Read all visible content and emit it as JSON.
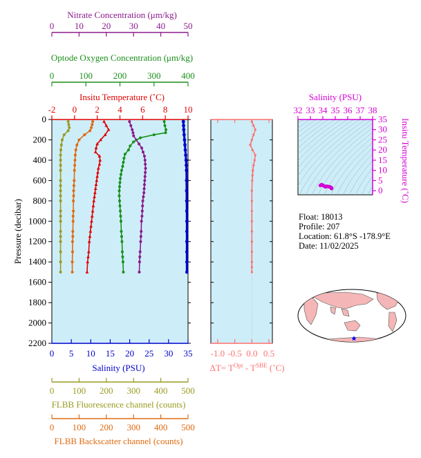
{
  "colors": {
    "nitrate": "#8b1a8b",
    "oxygen": "#1a8f1a",
    "temperature": "#e00000",
    "salinity": "#0000cc",
    "fluorescence": "#9a9a20",
    "backscatter": "#e06a10",
    "delta_t": "#ff6f6f",
    "ts_axis": "#d400d4",
    "plot_bg": "#cdeef9",
    "map_land": "#f4b6b6"
  },
  "info": {
    "float": "Float:  18013",
    "profile": "Profile:  207",
    "location": "Location:  61.8°S  -178.9°E",
    "date": "Date:  11/02/2025"
  },
  "chart_data": [
    {
      "type": "line",
      "id": "main-profile",
      "y_axis": {
        "label": "Pressure (decibar)",
        "lim": [
          2200,
          0
        ],
        "ticks": [
          0,
          200,
          400,
          600,
          800,
          1000,
          1200,
          1400,
          1600,
          1800,
          2000,
          2200
        ]
      },
      "axes": {
        "nitrate": {
          "label": "Nitrate Concentration (μm/kg)",
          "lim": [
            0,
            50
          ],
          "ticks": [
            0,
            10,
            20,
            30,
            40,
            50
          ]
        },
        "oxygen": {
          "label": "Optode Oxygen Concentration (μm/kg)",
          "lim": [
            0,
            400
          ],
          "ticks": [
            0,
            100,
            200,
            300,
            400
          ]
        },
        "temperature": {
          "label": "Insitu Temperature (˚C)",
          "lim": [
            -2,
            10
          ],
          "ticks": [
            -2,
            0,
            2,
            4,
            6,
            8,
            10
          ]
        },
        "salinity": {
          "label": "Salinity (PSU)",
          "lim": [
            0,
            35
          ],
          "ticks": [
            0,
            5,
            10,
            15,
            20,
            25,
            30,
            35
          ]
        },
        "fluorescence": {
          "label": "FLBB Fluorescence channel (counts)",
          "lim": [
            0,
            500
          ],
          "ticks": [
            0,
            100,
            200,
            300,
            400,
            500
          ]
        },
        "backscatter": {
          "label": "FLBB Backscatter channel (counts)",
          "lim": [
            0,
            500
          ],
          "ticks": [
            0,
            100,
            200,
            300,
            400,
            500
          ]
        }
      },
      "series": [
        {
          "axis": "nitrate",
          "x": [
            28.5,
            29,
            29.5,
            29.8,
            30,
            31,
            32,
            33,
            33.5,
            34,
            34.2,
            34.3,
            34.4,
            34.3,
            34.2,
            34.1,
            34.0,
            33.9,
            33.8,
            33.6,
            33.4,
            33.3,
            33.2,
            33.1,
            32.9,
            32.8,
            32.7,
            32.6,
            32.4,
            32.3,
            32.2,
            32.1
          ],
          "y": [
            20,
            60,
            100,
            130,
            160,
            200,
            240,
            280,
            320,
            360,
            400,
            440,
            480,
            520,
            560,
            600,
            640,
            680,
            720,
            760,
            800,
            850,
            900,
            950,
            1000,
            1100,
            1150,
            1200,
            1300,
            1350,
            1400,
            1500
          ]
        },
        {
          "axis": "oxygen",
          "x": [
            330,
            332,
            335,
            334,
            300,
            260,
            240,
            230,
            225,
            215,
            212,
            210,
            208,
            205,
            203,
            201,
            200,
            199,
            198,
            198,
            199,
            200,
            201,
            202,
            203,
            204,
            205,
            206,
            207,
            208,
            209,
            210
          ],
          "y": [
            20,
            60,
            100,
            130,
            150,
            180,
            220,
            260,
            300,
            340,
            380,
            420,
            460,
            500,
            540,
            580,
            620,
            660,
            700,
            750,
            800,
            850,
            900,
            950,
            1000,
            1100,
            1150,
            1200,
            1300,
            1350,
            1400,
            1500
          ]
        },
        {
          "axis": "temperature",
          "x": [
            2.6,
            2.8,
            3.0,
            2.7,
            2.3,
            2.0,
            1.9,
            1.85,
            2.2,
            2.25,
            2.2,
            2.1,
            2.05,
            2.0,
            1.95,
            1.9,
            1.85,
            1.8,
            1.75,
            1.7,
            1.65,
            1.6,
            1.55,
            1.5,
            1.45,
            1.4,
            1.35,
            1.3,
            1.25,
            1.2,
            1.15,
            1.1
          ],
          "y": [
            20,
            60,
            100,
            150,
            200,
            240,
            280,
            320,
            360,
            400,
            440,
            480,
            520,
            560,
            600,
            640,
            680,
            720,
            760,
            800,
            850,
            900,
            950,
            1000,
            1050,
            1100,
            1150,
            1200,
            1300,
            1350,
            1400,
            1500
          ]
        },
        {
          "axis": "salinity",
          "x": [
            33.8,
            33.85,
            33.9,
            34.0,
            34.1,
            34.2,
            34.3,
            34.4,
            34.5,
            34.55,
            34.6,
            34.62,
            34.64,
            34.66,
            34.68,
            34.7,
            34.7,
            34.7,
            34.7,
            34.7,
            34.7
          ],
          "y": [
            20,
            60,
            100,
            150,
            200,
            250,
            300,
            350,
            400,
            450,
            500,
            600,
            700,
            800,
            900,
            1000,
            1100,
            1200,
            1300,
            1400,
            1500
          ]
        },
        {
          "axis": "fluorescence",
          "x": [
            60,
            62,
            64,
            60,
            45,
            38,
            35,
            33,
            32,
            32,
            32,
            32,
            32,
            32,
            32,
            32,
            32,
            32,
            32,
            32,
            32,
            32,
            32,
            32,
            32,
            32
          ],
          "y": [
            20,
            50,
            80,
            110,
            150,
            200,
            250,
            300,
            350,
            400,
            450,
            500,
            600,
            650,
            700,
            750,
            800,
            900,
            950,
            1000,
            1100,
            1150,
            1200,
            1300,
            1400,
            1500
          ]
        },
        {
          "axis": "backscatter",
          "x": [
            150,
            148,
            145,
            140,
            120,
            100,
            92,
            88,
            86,
            85,
            84,
            83,
            82,
            81,
            80,
            80,
            79,
            79,
            78,
            78,
            77,
            77,
            76,
            76,
            75,
            75
          ],
          "y": [
            20,
            50,
            80,
            110,
            150,
            200,
            250,
            300,
            350,
            400,
            450,
            500,
            600,
            650,
            700,
            750,
            800,
            900,
            950,
            1000,
            1100,
            1150,
            1200,
            1300,
            1400,
            1500
          ]
        }
      ]
    },
    {
      "type": "line",
      "id": "delta-t",
      "x_axis": {
        "label_prefix": "ΔT= T",
        "label_sup1": "Opt",
        "label_mid": " - T",
        "label_sup2": "SBE",
        "label_suffix": " (˚C)",
        "lim": [
          -1.2,
          0.6
        ],
        "ticks": [
          -1.0,
          -0.5,
          0.0,
          0.5
        ],
        "tick_labels": [
          "-1.0",
          "-0.5",
          "0.0",
          "0.5"
        ]
      },
      "y_lim": [
        2200,
        0
      ],
      "series": [
        {
          "x": [
            0.0,
            0.05,
            0.1,
            0.05,
            0.0,
            -0.05,
            0.02,
            0.1,
            0.08,
            0.05,
            0.03,
            0.02,
            0.01,
            0.0,
            0.0,
            0.0,
            0.0,
            0.0,
            0.0,
            0.0,
            0.0,
            0.0,
            0.0
          ],
          "y": [
            20,
            60,
            100,
            150,
            200,
            250,
            300,
            350,
            400,
            450,
            500,
            550,
            600,
            700,
            800,
            900,
            1000,
            1100,
            1200,
            1300,
            1400,
            1450,
            1500
          ]
        }
      ]
    },
    {
      "type": "scatter",
      "id": "ts-diagram",
      "x_axis": {
        "label": "Salinity (PSU)",
        "lim": [
          32,
          38
        ],
        "ticks": [
          32,
          33,
          34,
          35,
          36,
          37,
          38
        ]
      },
      "y_axis": {
        "label": "Insitu Temperature (˚C)",
        "lim": [
          -2,
          35
        ],
        "ticks": [
          0,
          5,
          10,
          15,
          20,
          25,
          30,
          35
        ]
      },
      "series": [
        {
          "x": [
            33.8,
            33.9,
            34.0,
            34.1,
            34.2,
            34.3,
            34.4,
            34.5,
            34.55,
            34.6,
            34.65,
            34.7,
            34.7,
            34.7
          ],
          "y": [
            2.6,
            3.0,
            2.7,
            2.3,
            1.9,
            2.2,
            2.1,
            2.0,
            1.9,
            1.8,
            1.6,
            1.4,
            1.2,
            1.1
          ]
        }
      ]
    }
  ]
}
